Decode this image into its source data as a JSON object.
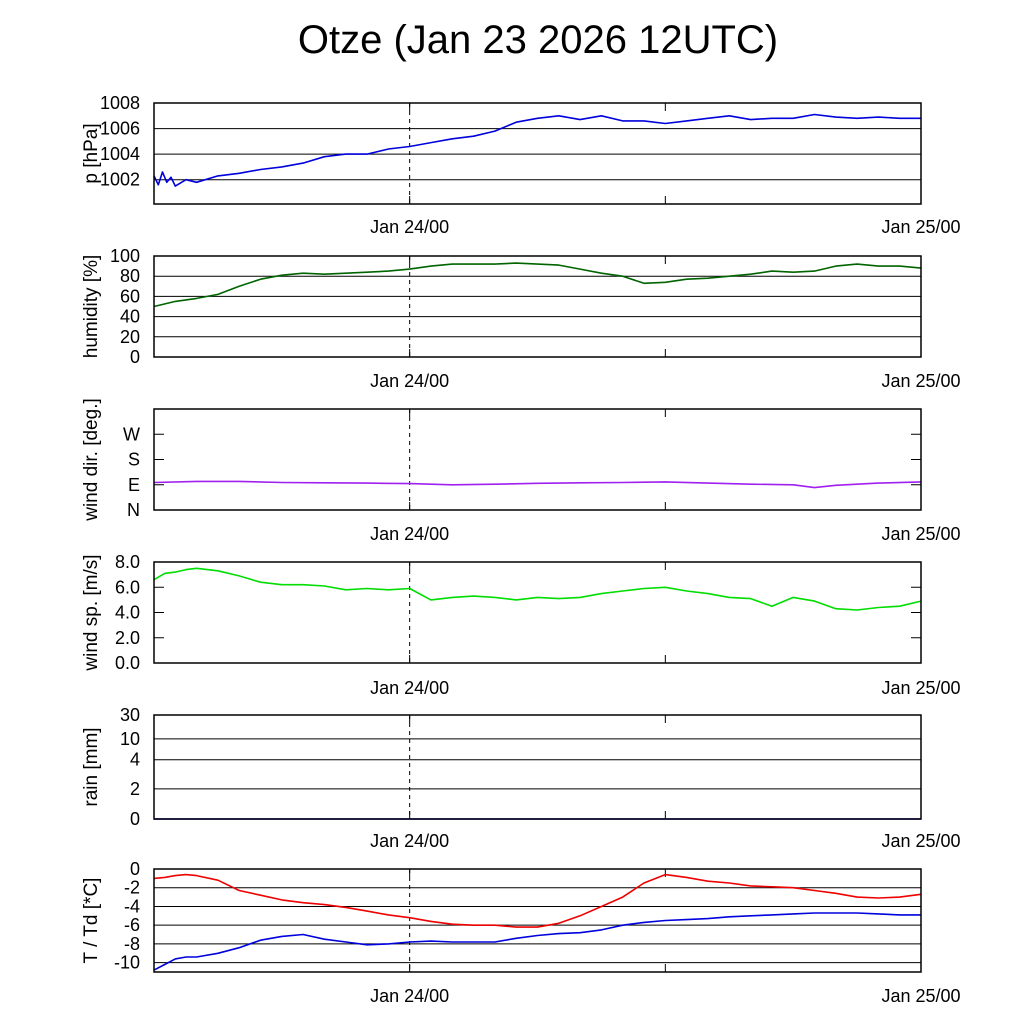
{
  "title": "Otze (Jan 23 2026 12UTC)",
  "x_axis": {
    "tick_labels": [
      "Jan 24/00",
      "Jan 25/00"
    ],
    "range": [
      "Jan 23 12UTC",
      "Jan 25 00UTC"
    ]
  },
  "chart_data": [
    {
      "type": "line",
      "ylabel": "p [hPa]",
      "ylim": [
        1000.1,
        1008
      ],
      "yticks": [
        1002,
        1004,
        1006,
        1008
      ],
      "ytick_labels": [
        "1002",
        "1004",
        "1006",
        "1008"
      ],
      "grid": true,
      "series": [
        {
          "color": "#0000dd",
          "x": [
            0,
            0.2,
            0.4,
            0.6,
            0.8,
            1,
            1.5,
            2,
            3,
            4,
            5,
            6,
            7,
            8,
            9,
            10,
            11,
            12,
            13,
            14,
            15,
            16,
            17,
            18,
            19,
            20,
            21,
            22,
            23,
            24,
            25,
            26,
            27,
            28,
            29,
            30,
            31,
            32,
            33,
            34,
            35,
            36
          ],
          "y": [
            1002.3,
            1001.6,
            1002.6,
            1001.8,
            1002.2,
            1001.5,
            1002.0,
            1001.8,
            1002.3,
            1002.5,
            1002.8,
            1003.0,
            1003.3,
            1003.8,
            1004.0,
            1004.0,
            1004.4,
            1004.6,
            1004.9,
            1005.2,
            1005.4,
            1005.8,
            1006.5,
            1006.8,
            1007.0,
            1006.7,
            1007.0,
            1006.6,
            1006.6,
            1006.4,
            1006.6,
            1006.8,
            1007.0,
            1006.7,
            1006.8,
            1006.8,
            1007.1,
            1006.9,
            1006.8,
            1006.9,
            1006.8,
            1006.8
          ]
        }
      ]
    },
    {
      "type": "line",
      "ylabel": "humidity [%]",
      "ylim": [
        0,
        100
      ],
      "yticks": [
        0,
        20,
        40,
        60,
        80,
        100
      ],
      "ytick_labels": [
        "0",
        "20",
        "40",
        "60",
        "80",
        "100"
      ],
      "grid": true,
      "series": [
        {
          "color": "#006400",
          "x": [
            0,
            1,
            2,
            3,
            4,
            5,
            6,
            7,
            8,
            9,
            10,
            11,
            12,
            13,
            14,
            15,
            16,
            17,
            18,
            19,
            20,
            21,
            22,
            23,
            24,
            25,
            26,
            27,
            28,
            29,
            30,
            31,
            32,
            33,
            34,
            35,
            36
          ],
          "y": [
            50,
            55,
            58,
            62,
            70,
            77,
            81,
            83,
            82,
            83,
            84,
            85,
            87,
            90,
            92,
            92,
            92,
            93,
            92,
            91,
            87,
            83,
            80,
            73,
            74,
            77,
            78,
            80,
            82,
            85,
            84,
            85,
            90,
            92,
            90,
            90,
            88
          ]
        }
      ]
    },
    {
      "type": "line",
      "ylabel": "wind dir. [deg.]",
      "ylim": [
        0,
        360
      ],
      "yticks": [
        0,
        90,
        180,
        270
      ],
      "ytick_labels": [
        "N",
        "E",
        "S",
        "W"
      ],
      "grid": false,
      "series": [
        {
          "color": "#a020f0",
          "x": [
            0,
            2,
            4,
            6,
            8,
            10,
            12,
            14,
            16,
            18,
            20,
            22,
            24,
            26,
            28,
            30,
            31,
            32,
            34,
            36
          ],
          "y": [
            98,
            102,
            102,
            98,
            97,
            96,
            94,
            90,
            92,
            95,
            97,
            98,
            100,
            96,
            92,
            90,
            80,
            88,
            96,
            100
          ]
        }
      ]
    },
    {
      "type": "line",
      "ylabel": "wind sp. [m/s]",
      "ylim": [
        0,
        8
      ],
      "yticks": [
        0,
        2,
        4,
        6,
        8
      ],
      "ytick_labels": [
        "0.0",
        "2.0",
        "4.0",
        "6.0",
        "8.0"
      ],
      "grid": false,
      "series": [
        {
          "color": "#00dd00",
          "x": [
            0,
            0.5,
            1,
            1.5,
            2,
            3,
            4,
            5,
            6,
            7,
            8,
            9,
            10,
            11,
            12,
            13,
            14,
            15,
            16,
            17,
            18,
            19,
            20,
            21,
            22,
            23,
            24,
            25,
            26,
            27,
            28,
            29,
            30,
            31,
            32,
            33,
            34,
            35,
            36
          ],
          "y": [
            6.6,
            7.1,
            7.2,
            7.4,
            7.5,
            7.3,
            6.9,
            6.4,
            6.2,
            6.2,
            6.1,
            5.8,
            5.9,
            5.8,
            5.9,
            5.0,
            5.2,
            5.3,
            5.2,
            5.0,
            5.2,
            5.1,
            5.2,
            5.5,
            5.7,
            5.9,
            6.0,
            5.7,
            5.5,
            5.2,
            5.1,
            4.5,
            5.2,
            4.9,
            4.3,
            4.2,
            4.4,
            4.5,
            4.9
          ]
        }
      ]
    },
    {
      "type": "line",
      "ylabel": "rain [mm]",
      "ylim": [
        0,
        30
      ],
      "yticks": [
        0,
        2,
        4,
        10,
        30
      ],
      "ytick_labels": [
        "0",
        "2",
        "4",
        "10",
        "30"
      ],
      "grid": true,
      "series": [
        {
          "color": "#0000dd",
          "x": [
            0,
            36
          ],
          "y": [
            0,
            0
          ]
        }
      ]
    },
    {
      "type": "line",
      "ylabel": "T / Td [*C]",
      "ylim": [
        -11,
        0
      ],
      "yticks": [
        -10,
        -8,
        -6,
        -4,
        -2,
        0
      ],
      "ytick_labels": [
        "-10",
        "-8",
        "-6",
        "-4",
        "-2",
        "0"
      ],
      "grid": true,
      "series": [
        {
          "color": "#ee0000",
          "x": [
            0,
            0.5,
            1,
            1.5,
            2,
            3,
            4,
            5,
            6,
            7,
            8,
            9,
            10,
            11,
            12,
            13,
            14,
            15,
            16,
            17,
            18,
            19,
            20,
            21,
            22,
            23,
            24,
            25,
            26,
            27,
            28,
            29,
            30,
            31,
            32,
            33,
            34,
            35,
            36
          ],
          "y": [
            -1.0,
            -0.9,
            -0.7,
            -0.6,
            -0.7,
            -1.2,
            -2.3,
            -2.8,
            -3.3,
            -3.6,
            -3.8,
            -4.1,
            -4.5,
            -4.9,
            -5.2,
            -5.6,
            -5.9,
            -6.0,
            -6.0,
            -6.2,
            -6.2,
            -5.8,
            -5.0,
            -4.0,
            -3.0,
            -1.5,
            -0.6,
            -0.9,
            -1.3,
            -1.5,
            -1.8,
            -1.9,
            -2.0,
            -2.3,
            -2.6,
            -3.0,
            -3.1,
            -3.0,
            -2.7
          ]
        },
        {
          "color": "#0000dd",
          "x": [
            0,
            0.5,
            1,
            1.5,
            2,
            3,
            4,
            5,
            6,
            7,
            8,
            9,
            10,
            11,
            12,
            13,
            14,
            15,
            16,
            17,
            18,
            19,
            20,
            21,
            22,
            23,
            24,
            25,
            26,
            27,
            28,
            29,
            30,
            31,
            32,
            33,
            34,
            35,
            36
          ],
          "y": [
            -10.8,
            -10.2,
            -9.6,
            -9.4,
            -9.4,
            -9.0,
            -8.4,
            -7.6,
            -7.2,
            -7.0,
            -7.5,
            -7.8,
            -8.1,
            -8.0,
            -7.8,
            -7.7,
            -7.8,
            -7.8,
            -7.8,
            -7.4,
            -7.1,
            -6.9,
            -6.8,
            -6.5,
            -6.0,
            -5.7,
            -5.5,
            -5.4,
            -5.3,
            -5.1,
            -5.0,
            -4.9,
            -4.8,
            -4.7,
            -4.7,
            -4.7,
            -4.8,
            -4.9,
            -4.9
          ]
        }
      ]
    }
  ]
}
